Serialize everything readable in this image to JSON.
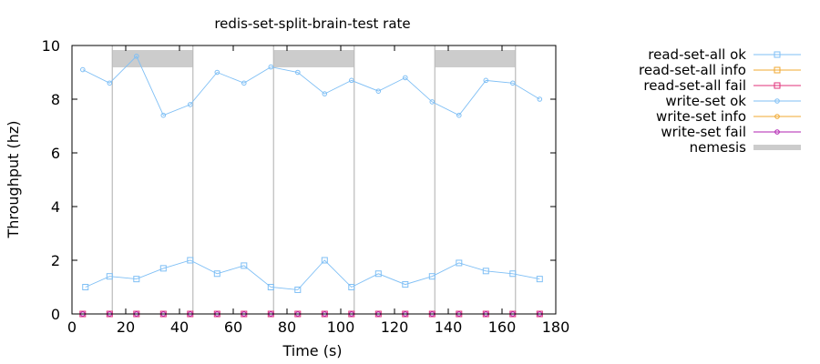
{
  "chart_data": {
    "type": "line",
    "title": "redis-set-split-brain-test rate",
    "xlabel": "Time (s)",
    "ylabel": "Throughput (hz)",
    "xlim": [
      0,
      180
    ],
    "ylim": [
      0,
      10
    ],
    "xticks": [
      0,
      20,
      40,
      60,
      80,
      100,
      120,
      140,
      160,
      180
    ],
    "yticks": [
      0,
      2,
      4,
      6,
      8,
      10
    ],
    "grid": false,
    "legend_position": "right",
    "series": [
      {
        "name": "read-set-all ok",
        "color": "#7fbff5",
        "marker": "square",
        "x": [
          5,
          14,
          24,
          34,
          44,
          54,
          64,
          74,
          84,
          94,
          104,
          114,
          124,
          134,
          144,
          154,
          164,
          174
        ],
        "y": [
          1.0,
          1.4,
          1.3,
          1.7,
          2.0,
          1.5,
          1.8,
          1.0,
          0.9,
          2.0,
          1.0,
          1.5,
          1.1,
          1.4,
          1.9,
          1.6,
          1.5,
          1.3
        ]
      },
      {
        "name": "read-set-all info",
        "color": "#f0a830",
        "marker": "square",
        "x": [],
        "y": []
      },
      {
        "name": "read-set-all fail",
        "color": "#e0307a",
        "marker": "square",
        "x": [
          4,
          14,
          24,
          34,
          44,
          54,
          64,
          74,
          84,
          94,
          104,
          114,
          124,
          134,
          144,
          154,
          164,
          174
        ],
        "y": [
          0,
          0,
          0,
          0,
          0,
          0,
          0,
          0,
          0,
          0,
          0,
          0,
          0,
          0,
          0,
          0,
          0,
          0
        ]
      },
      {
        "name": "write-set ok",
        "color": "#7fbff5",
        "marker": "circle",
        "x": [
          4,
          14,
          24,
          34,
          44,
          54,
          64,
          74,
          84,
          94,
          104,
          114,
          124,
          134,
          144,
          154,
          164,
          174
        ],
        "y": [
          9.1,
          8.6,
          9.6,
          7.4,
          7.8,
          9.0,
          8.6,
          9.2,
          9.0,
          8.2,
          8.7,
          8.3,
          8.8,
          7.9,
          7.4,
          8.7,
          8.6,
          8.0
        ]
      },
      {
        "name": "write-set info",
        "color": "#f0a830",
        "marker": "circle",
        "x": [],
        "y": []
      },
      {
        "name": "write-set fail",
        "color": "#b020b0",
        "marker": "circle",
        "x": [
          4,
          14,
          24,
          34,
          44,
          54,
          64,
          74,
          84,
          94,
          104,
          114,
          124,
          134,
          144,
          154,
          164,
          174
        ],
        "y": [
          0,
          0,
          0,
          0,
          0,
          0,
          0,
          0,
          0,
          0,
          0,
          0,
          0,
          0,
          0,
          0,
          0,
          0
        ]
      }
    ],
    "nemesis": {
      "name": "nemesis",
      "color": "#cccccc",
      "intervals": [
        [
          15,
          45
        ],
        [
          75,
          105
        ],
        [
          135,
          165
        ]
      ]
    }
  }
}
